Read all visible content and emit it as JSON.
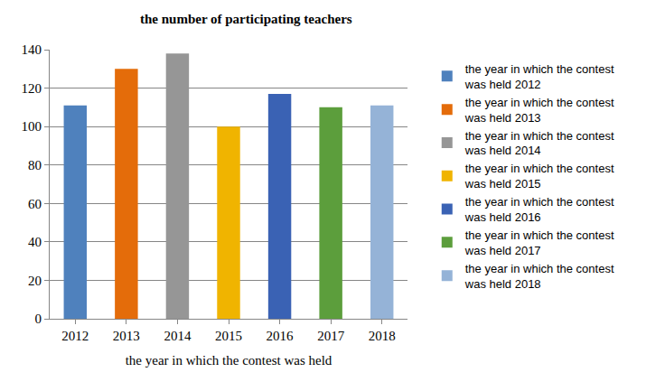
{
  "chart_data": {
    "type": "bar",
    "title": "the number of participating teachers",
    "x_label": "the year in which the contest was held",
    "categories": [
      "2012",
      "2013",
      "2014",
      "2015",
      "2016",
      "2017",
      "2018"
    ],
    "series": [
      {
        "name": "the year in which the contest was held 2012",
        "color": "#4f81bd",
        "values": [
          111,
          null,
          null,
          null,
          null,
          null,
          null
        ]
      },
      {
        "name": "the year in which the contest was held 2013",
        "color": "#e46c0a",
        "values": [
          null,
          130,
          null,
          null,
          null,
          null,
          null
        ]
      },
      {
        "name": "the year in which the contest was held 2014",
        "color": "#969696",
        "values": [
          null,
          null,
          138,
          null,
          null,
          null,
          null
        ]
      },
      {
        "name": "the year in which the contest was held 2015",
        "color": "#f0b400",
        "values": [
          null,
          null,
          null,
          100,
          null,
          null,
          null
        ]
      },
      {
        "name": "the year in which the contest was held 2016",
        "color": "#3a62b4",
        "values": [
          null,
          null,
          null,
          null,
          117,
          null,
          null
        ]
      },
      {
        "name": "the year in which the contest was held 2017",
        "color": "#5c9e3c",
        "values": [
          null,
          null,
          null,
          null,
          null,
          110,
          null
        ]
      },
      {
        "name": "the year in which the contest was held 2018",
        "color": "#95b3d7",
        "values": [
          null,
          null,
          null,
          null,
          null,
          null,
          111
        ]
      }
    ],
    "ylim": [
      0,
      140
    ],
    "yticks": [
      0,
      20,
      40,
      60,
      80,
      100,
      120,
      140
    ],
    "grid": true,
    "legend": "right"
  }
}
